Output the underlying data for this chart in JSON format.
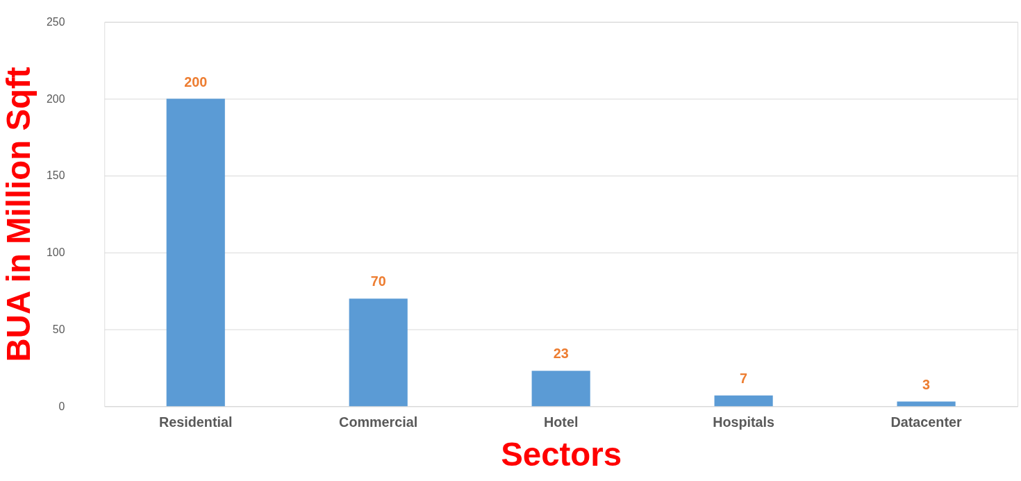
{
  "chart_data": {
    "type": "bar",
    "xlabel": "Sectors",
    "ylabel": "BUA in Million Sqft",
    "categories": [
      "Residential",
      "Commercial",
      "Hotel",
      "Hospitals",
      "Datacenter"
    ],
    "values": [
      200,
      70,
      23,
      7,
      3
    ],
    "color": "#5b9bd5",
    "ylim": [
      0,
      250
    ],
    "yticks": [
      0,
      50,
      100,
      150,
      200,
      250
    ],
    "grid": "y",
    "data_labels": true
  }
}
